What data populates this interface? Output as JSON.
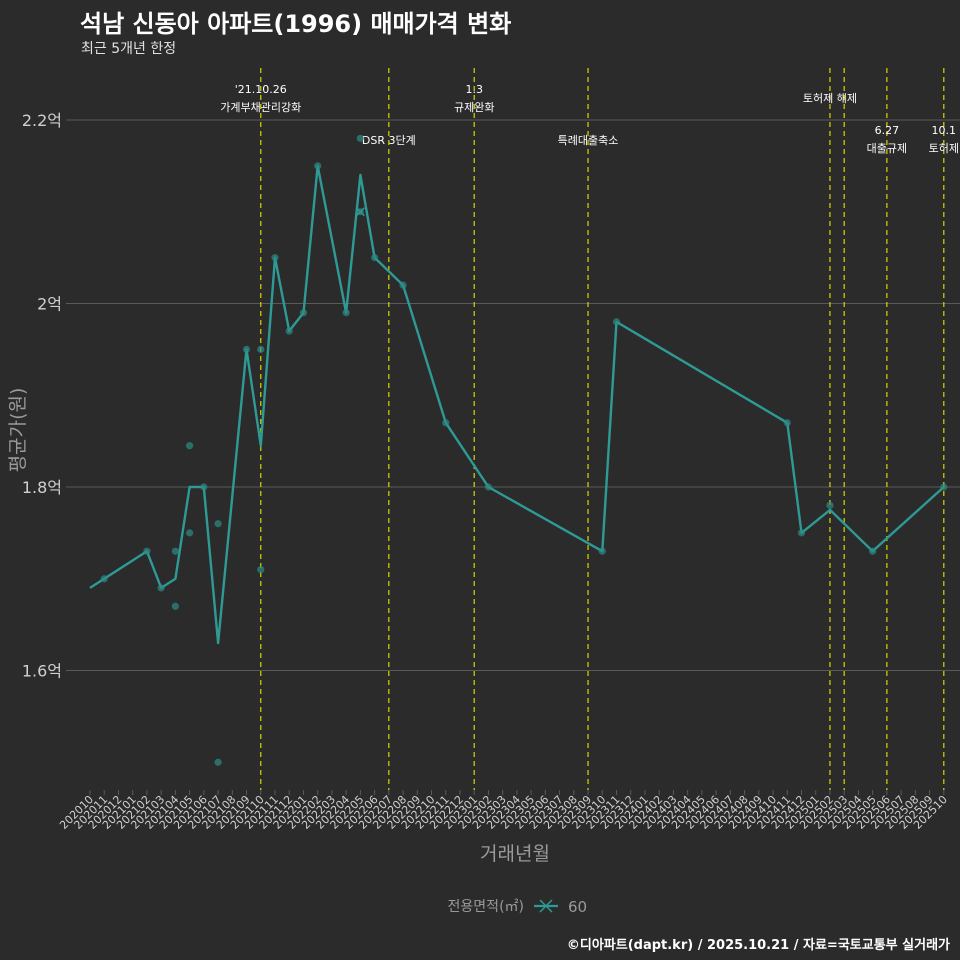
{
  "header": {
    "title": "석남 신동아 아파트(1996) 매매가격 변화",
    "subtitle": "최근 5개년 한정"
  },
  "footer": {
    "credit": "©디아파트(dapt.kr) / 2025.10.21 / 자료=국토교통부 실거래가"
  },
  "colors": {
    "background": "#2b2b2b",
    "grid": "#5a5a5a",
    "line": "#2e9a95",
    "point": "#2e8b86",
    "event_line": "#d7d700",
    "text": "#d0d0d0",
    "axis_title": "#9a9a9a"
  },
  "chart_data": {
    "type": "line",
    "title": "석남 신동아 아파트(1996) 매매가격 변화",
    "subtitle": "최근 5개년 한정",
    "xlabel": "거래년월",
    "ylabel": "평균가(원)",
    "ylim": [
      1.47,
      2.26
    ],
    "y_ticks": [
      {
        "value": 1.6,
        "label": "1.6억"
      },
      {
        "value": 1.8,
        "label": "1.8억"
      },
      {
        "value": 2.0,
        "label": "2억"
      },
      {
        "value": 2.2,
        "label": "2.2억"
      }
    ],
    "grid": true,
    "categories": [
      "202010",
      "202011",
      "202012",
      "202101",
      "202102",
      "202103",
      "202104",
      "202105",
      "202106",
      "202107",
      "202108",
      "202109",
      "202110",
      "202111",
      "202112",
      "202201",
      "202202",
      "202203",
      "202204",
      "202205",
      "202206",
      "202207",
      "202208",
      "202209",
      "202210",
      "202211",
      "202212",
      "202301",
      "202302",
      "202303",
      "202304",
      "202305",
      "202306",
      "202307",
      "202308",
      "202309",
      "202310",
      "202311",
      "202312",
      "202401",
      "202402",
      "202403",
      "202404",
      "202405",
      "202406",
      "202407",
      "202408",
      "202409",
      "202410",
      "202411",
      "202412",
      "202501",
      "202502",
      "202503",
      "202504",
      "202505",
      "202506",
      "202507",
      "202508",
      "202509",
      "202510"
    ],
    "series": [
      {
        "name": "60",
        "line": [
          [
            "202010",
            1.69
          ],
          [
            "202011",
            1.7
          ],
          [
            "202102",
            1.73
          ],
          [
            "202103",
            1.69
          ],
          [
            "202104",
            1.7
          ],
          [
            "202105",
            1.8
          ],
          [
            "202106",
            1.8
          ],
          [
            "202107",
            1.63
          ],
          [
            "202109",
            1.95
          ],
          [
            "202110",
            1.845
          ],
          [
            "202111",
            2.05
          ],
          [
            "202112",
            1.97
          ],
          [
            "202201",
            1.99
          ],
          [
            "202202",
            2.15
          ],
          [
            "202204",
            1.99
          ],
          [
            "202205",
            2.14
          ],
          [
            "202206",
            2.05
          ],
          [
            "202208",
            2.02
          ],
          [
            "202211",
            1.87
          ],
          [
            "202302",
            1.8
          ],
          [
            "202310",
            1.73
          ],
          [
            "202311",
            1.98
          ],
          [
            "202411",
            1.87
          ],
          [
            "202412",
            1.75
          ],
          [
            "202502",
            1.775
          ],
          [
            "202505",
            1.73
          ],
          [
            "202510",
            1.8
          ]
        ],
        "points": [
          [
            "202011",
            1.7
          ],
          [
            "202102",
            1.73
          ],
          [
            "202103",
            1.69
          ],
          [
            "202104",
            1.73
          ],
          [
            "202104",
            1.67
          ],
          [
            "202105",
            1.845
          ],
          [
            "202105",
            1.75
          ],
          [
            "202106",
            1.8
          ],
          [
            "202107",
            1.76
          ],
          [
            "202107",
            1.5
          ],
          [
            "202109",
            1.95
          ],
          [
            "202110",
            1.95
          ],
          [
            "202110",
            1.71
          ],
          [
            "202111",
            2.05
          ],
          [
            "202112",
            1.97
          ],
          [
            "202201",
            1.99
          ],
          [
            "202202",
            2.15
          ],
          [
            "202204",
            1.99
          ],
          [
            "202205",
            2.18
          ],
          [
            "202205",
            2.1
          ],
          [
            "202206",
            2.05
          ],
          [
            "202208",
            2.02
          ],
          [
            "202211",
            1.87
          ],
          [
            "202302",
            1.8
          ],
          [
            "202310",
            1.73
          ],
          [
            "202311",
            1.98
          ],
          [
            "202411",
            1.87
          ],
          [
            "202412",
            1.75
          ],
          [
            "202502",
            1.78
          ],
          [
            "202505",
            1.73
          ],
          [
            "202510",
            1.8
          ]
        ]
      }
    ],
    "events": [
      {
        "pos": 12,
        "line1": "'21.10.26",
        "line2": "가계부채관리강화",
        "tier": "high"
      },
      {
        "pos": 21,
        "line1": "",
        "line2": "DSR 3단계",
        "tier": "low"
      },
      {
        "pos": 27,
        "line1": "1.3",
        "line2": "규제완화",
        "tier": "high"
      },
      {
        "pos": 35,
        "line1": "",
        "line2": "특례대출축소",
        "tier": "low"
      },
      {
        "pos": 52,
        "line1": "",
        "line2": "토허제 해제",
        "tier": "mid"
      },
      {
        "pos": 53,
        "line1": "",
        "line2": "",
        "tier": "none"
      },
      {
        "pos": 56,
        "line1": "6.27",
        "line2": "대출규제",
        "tier": "low"
      },
      {
        "pos": 60,
        "line1": "10.1",
        "line2": "토허제",
        "tier": "low"
      }
    ],
    "legend": {
      "title": "전용면적(㎡)",
      "items": [
        "60"
      ],
      "position": "bottom"
    }
  }
}
